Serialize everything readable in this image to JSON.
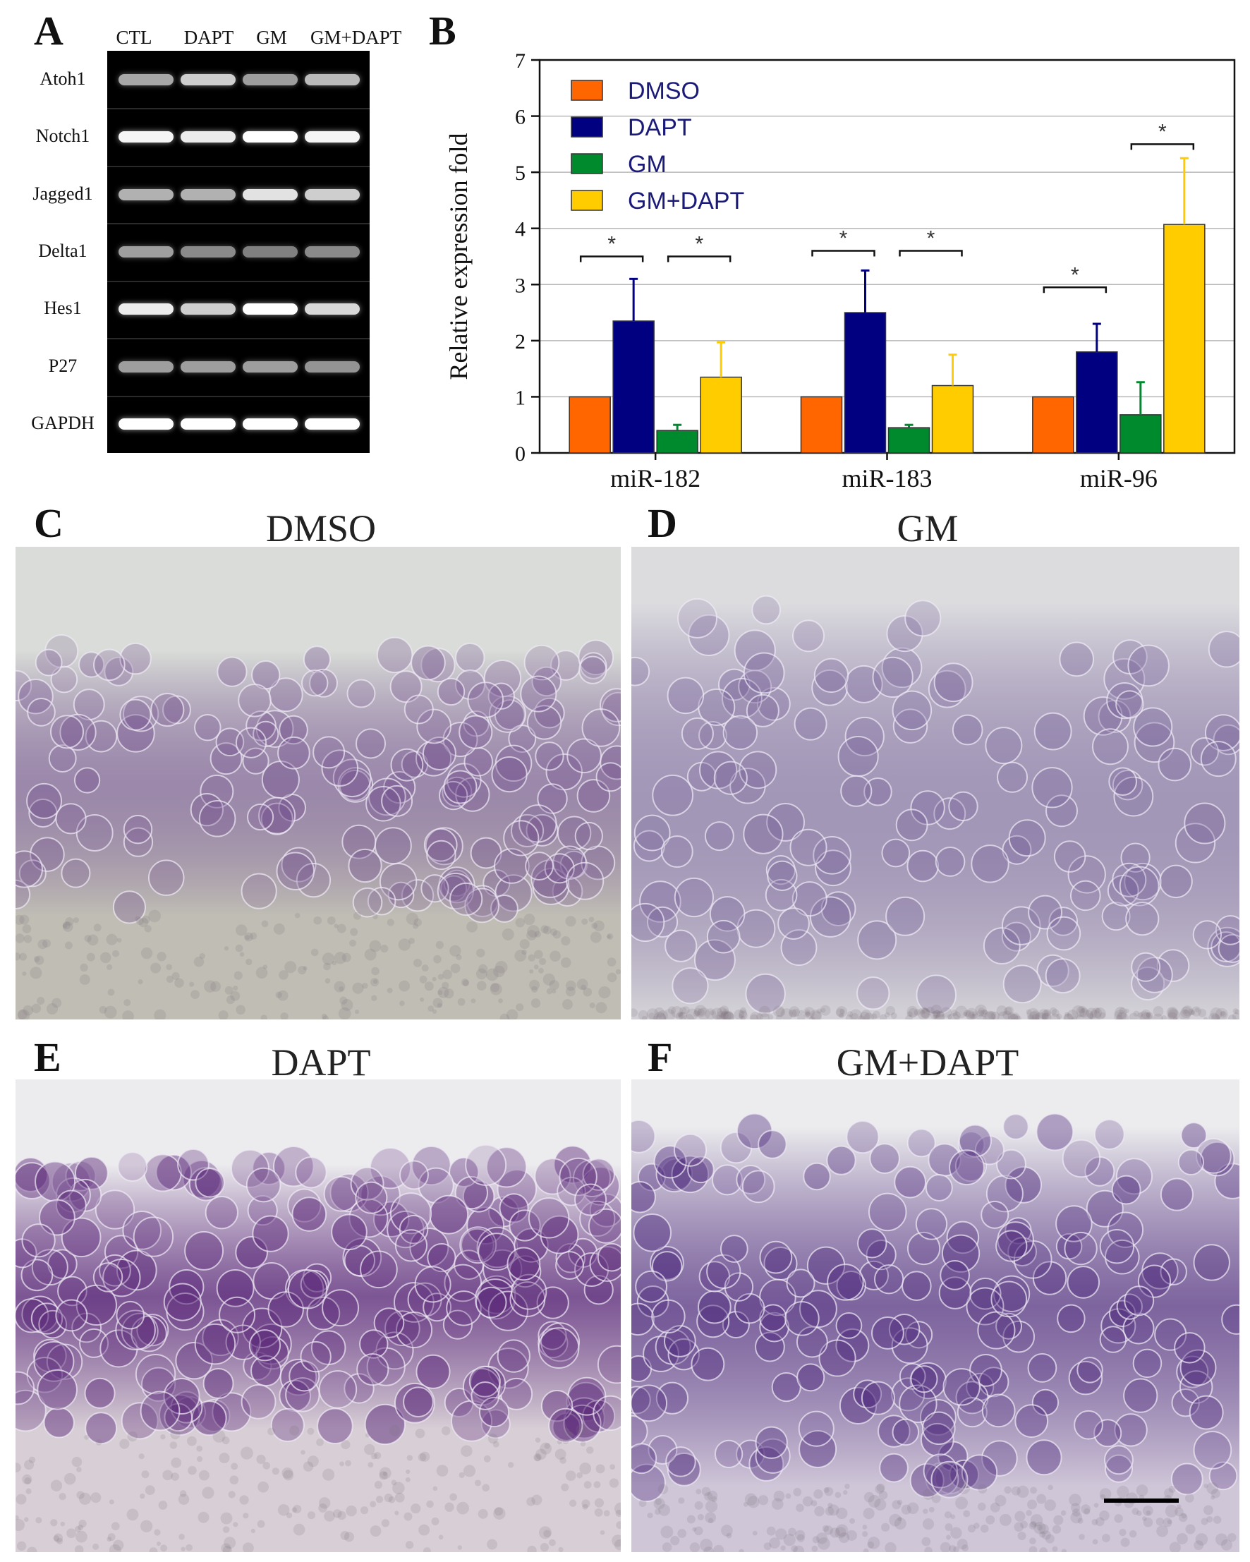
{
  "panels": {
    "a": {
      "letter": "A"
    },
    "b": {
      "letter": "B"
    },
    "c": {
      "letter": "C",
      "title": "DMSO"
    },
    "d": {
      "letter": "D",
      "title": "GM"
    },
    "e": {
      "letter": "E",
      "title": "DAPT"
    },
    "f": {
      "letter": "F",
      "title": "GM+DAPT"
    }
  },
  "gel": {
    "lanes": [
      "CTL",
      "DAPT",
      "GM",
      "GM+DAPT"
    ],
    "rows": [
      {
        "gene": "Atoh1",
        "intensity": [
          0.55,
          0.75,
          0.5,
          0.65
        ]
      },
      {
        "gene": "Notch1",
        "intensity": [
          0.95,
          0.9,
          1.0,
          0.95
        ]
      },
      {
        "gene": "Jagged1",
        "intensity": [
          0.6,
          0.6,
          0.85,
          0.75
        ]
      },
      {
        "gene": "Delta1",
        "intensity": [
          0.5,
          0.4,
          0.35,
          0.4
        ]
      },
      {
        "gene": "Hes1",
        "intensity": [
          0.9,
          0.75,
          1.0,
          0.8
        ]
      },
      {
        "gene": "P27",
        "intensity": [
          0.5,
          0.5,
          0.5,
          0.45
        ]
      },
      {
        "gene": "GAPDH",
        "intensity": [
          1.0,
          1.0,
          1.0,
          1.0
        ]
      }
    ]
  },
  "chart_data": {
    "type": "bar",
    "categories": [
      "miR-182",
      "miR-183",
      "miR-96"
    ],
    "ylabel": "Relative expression fold",
    "xlabel": "",
    "ylim": [
      0,
      7
    ],
    "yticks": [
      0,
      1,
      2,
      3,
      4,
      5,
      6,
      7
    ],
    "grid": true,
    "legend_position": "top-left",
    "series": [
      {
        "name": "DMSO",
        "color": "#ff6600",
        "values": [
          1.0,
          1.0,
          1.0
        ],
        "errors": [
          0,
          0,
          0
        ]
      },
      {
        "name": "DAPT",
        "color": "#000080",
        "values": [
          2.35,
          2.5,
          1.8
        ],
        "errors": [
          0.75,
          0.75,
          0.5
        ]
      },
      {
        "name": "GM",
        "color": "#008a2e",
        "values": [
          0.4,
          0.45,
          0.68
        ],
        "errors": [
          0.1,
          0.05,
          0.58
        ]
      },
      {
        "name": "GM+DAPT",
        "color": "#ffcc00",
        "values": [
          1.35,
          1.2,
          4.07
        ],
        "errors": [
          0.62,
          0.55,
          1.18
        ]
      }
    ],
    "significance": [
      {
        "category": 0,
        "from": 0,
        "to": 1,
        "label": "*",
        "y": 3.5
      },
      {
        "category": 0,
        "from": 2,
        "to": 3,
        "label": "*",
        "y": 3.5
      },
      {
        "category": 1,
        "from": 0,
        "to": 1,
        "label": "*",
        "y": 3.6
      },
      {
        "category": 1,
        "from": 2,
        "to": 3,
        "label": "*",
        "y": 3.6
      },
      {
        "category": 2,
        "from": 0,
        "to": 1,
        "label": "*",
        "y": 2.95
      },
      {
        "category": 2,
        "from": 2,
        "to": 3,
        "label": "*",
        "y": 5.5
      }
    ]
  },
  "micrographs": {
    "c": {
      "stain": "#6e4a8a",
      "density": 0.45
    },
    "d": {
      "stain": "#6a5290",
      "density": 0.3
    },
    "e": {
      "stain": "#5c2a7a",
      "density": 0.85
    },
    "f": {
      "stain": "#4e2a7c",
      "density": 0.7
    }
  }
}
